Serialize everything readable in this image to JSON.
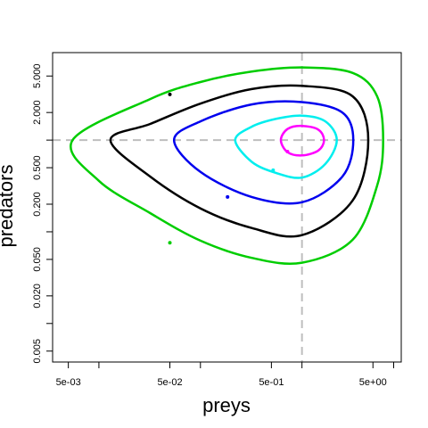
{
  "chart_data": {
    "type": "line",
    "title": "",
    "xlabel": "preys",
    "ylabel": "predators",
    "xscale": "log",
    "yscale": "log",
    "xlim": [
      0.0035,
      9.5
    ],
    "ylim": [
      0.0038,
      9.0
    ],
    "grid": false,
    "legend": "none",
    "x_ticks": [
      {
        "value": 0.005,
        "label": "5e-03"
      },
      {
        "value": 0.01,
        "label": ""
      },
      {
        "value": 0.05,
        "label": "5e-02"
      },
      {
        "value": 0.1,
        "label": ""
      },
      {
        "value": 0.5,
        "label": "5e-01"
      },
      {
        "value": 1,
        "label": ""
      },
      {
        "value": 5,
        "label": "5e+00"
      },
      {
        "value": 8,
        "label": ""
      }
    ],
    "y_ticks": [
      {
        "value": 0.005,
        "label": "0.005"
      },
      {
        "value": 0.01,
        "label": ""
      },
      {
        "value": 0.02,
        "label": "0.020"
      },
      {
        "value": 0.05,
        "label": "0.050"
      },
      {
        "value": 0.1,
        "label": ""
      },
      {
        "value": 0.2,
        "label": "0.200"
      },
      {
        "value": 0.5,
        "label": "0.500"
      },
      {
        "value": 1,
        "label": ""
      },
      {
        "value": 2,
        "label": "2.000"
      },
      {
        "value": 5,
        "label": "5.000"
      }
    ],
    "reference_lines": [
      {
        "orientation": "vertical",
        "value": 1.0,
        "color": "#bebebe",
        "style": "dashed"
      },
      {
        "orientation": "horizontal",
        "value": 1.0,
        "color": "#bebebe",
        "style": "dashed"
      }
    ],
    "series": [
      {
        "color": "#00cd00",
        "x": [
          1.0,
          3.16,
          5.5,
          6.3,
          5.5,
          3.16,
          1.0,
          0.32,
          0.1,
          0.032,
          0.0055,
          0.01,
          0.032,
          0.1,
          0.32,
          1.0
        ],
        "y": [
          0.046,
          0.082,
          0.32,
          1.0,
          3.0,
          5.4,
          6.2,
          5.6,
          4.3,
          2.8,
          1.0,
          0.36,
          0.16,
          0.08,
          0.052,
          0.046
        ],
        "marker": {
          "x": 0.05,
          "y": 0.076
        }
      },
      {
        "color": "#000000",
        "x": [
          1.0,
          3.16,
          4.5,
          3.16,
          1.0,
          0.32,
          0.1,
          0.032,
          0.013,
          0.032,
          0.1,
          0.32,
          1.0
        ],
        "y": [
          0.092,
          0.22,
          1.0,
          3.0,
          3.9,
          3.6,
          2.5,
          1.5,
          1.0,
          0.4,
          0.18,
          0.11,
          0.092
        ],
        "marker": {
          "x": 0.05,
          "y": 3.15
        }
      },
      {
        "color": "#0000ee",
        "x": [
          1.0,
          2.5,
          3.2,
          2.5,
          1.0,
          0.32,
          0.1,
          0.055,
          0.1,
          0.32,
          1.0
        ],
        "y": [
          0.21,
          0.4,
          1.0,
          2.0,
          2.6,
          2.45,
          1.6,
          1.0,
          0.45,
          0.24,
          0.21
        ],
        "marker": {
          "x": 0.185,
          "y": 0.24
        }
      },
      {
        "color": "#00eeee",
        "x": [
          1.0,
          1.7,
          2.2,
          1.7,
          1.0,
          0.55,
          0.32,
          0.22,
          0.32,
          0.55,
          1.0
        ],
        "y": [
          0.39,
          0.55,
          1.0,
          1.6,
          1.85,
          1.7,
          1.4,
          1.0,
          0.58,
          0.44,
          0.39
        ],
        "marker": {
          "x": 0.52,
          "y": 0.47
        }
      },
      {
        "color": "#ff00ff",
        "x": [
          1.0,
          1.45,
          1.65,
          1.45,
          1.0,
          0.72,
          0.62,
          0.72,
          1.0
        ],
        "y": [
          0.68,
          0.77,
          1.0,
          1.3,
          1.43,
          1.32,
          1.0,
          0.74,
          0.68
        ],
        "marker": {
          "x": 0.72,
          "y": 0.75
        }
      }
    ]
  }
}
